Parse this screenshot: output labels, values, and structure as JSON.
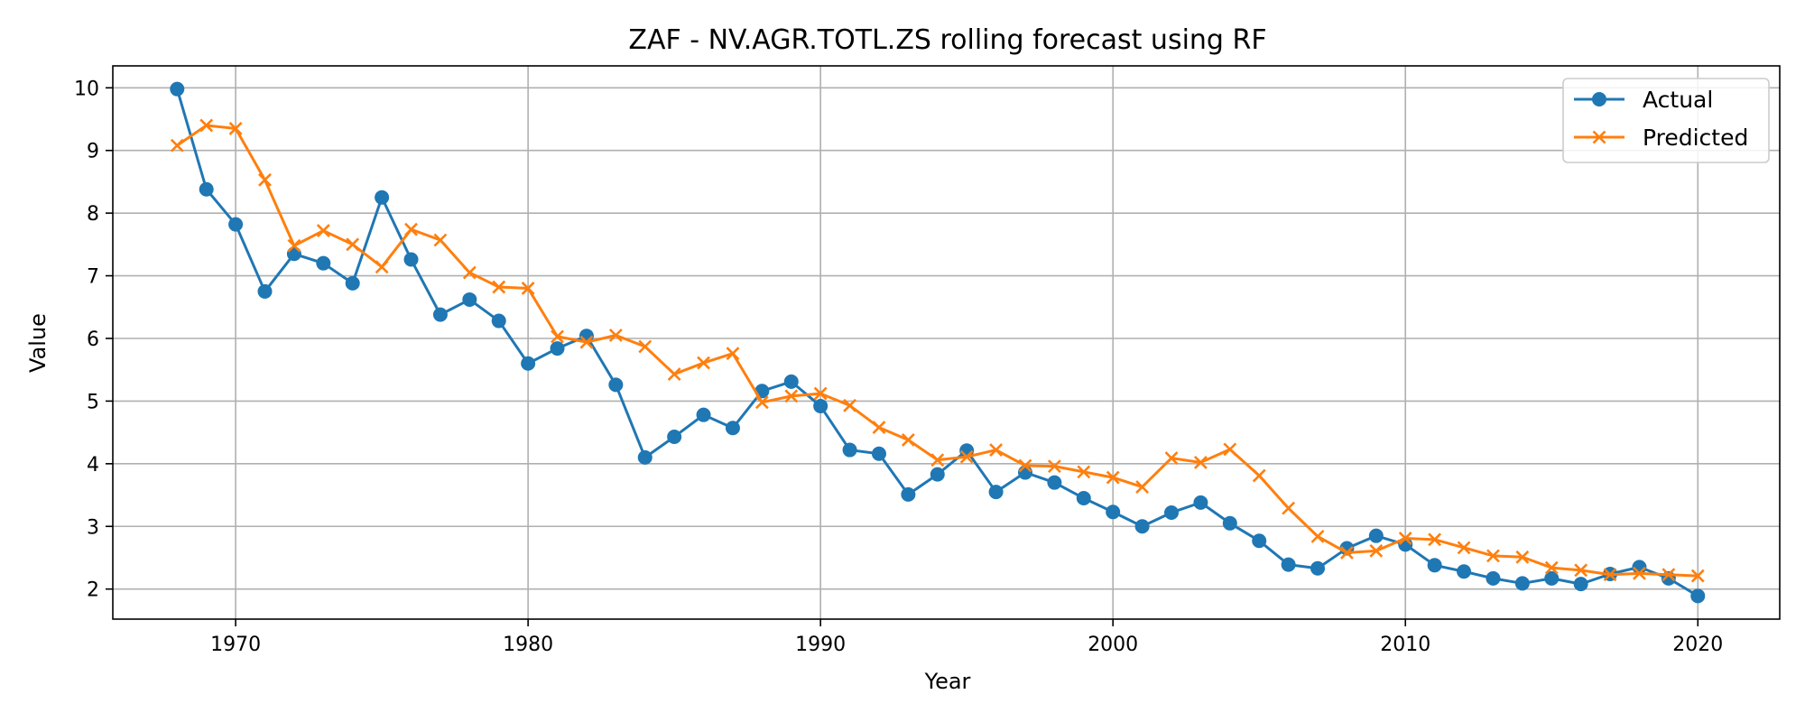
{
  "chart_data": {
    "type": "line",
    "title": "ZAF - NV.AGR.TOTL.ZS rolling forecast using RF",
    "xlabel": "Year",
    "ylabel": "Value",
    "xlim": [
      1965.8,
      2022.8
    ],
    "ylim": [
      1.52,
      10.35
    ],
    "x_ticks": [
      1970,
      1980,
      1990,
      2000,
      2010,
      2020
    ],
    "y_ticks": [
      2,
      3,
      4,
      5,
      6,
      7,
      8,
      9,
      10
    ],
    "grid": true,
    "legend_position": "top-right",
    "x": [
      1968,
      1969,
      1970,
      1971,
      1972,
      1973,
      1974,
      1975,
      1976,
      1977,
      1978,
      1979,
      1980,
      1981,
      1982,
      1983,
      1984,
      1985,
      1986,
      1987,
      1988,
      1989,
      1990,
      1991,
      1992,
      1993,
      1994,
      1995,
      1996,
      1997,
      1998,
      1999,
      2000,
      2001,
      2002,
      2003,
      2004,
      2005,
      2006,
      2007,
      2008,
      2009,
      2010,
      2011,
      2012,
      2013,
      2014,
      2015,
      2016,
      2017,
      2018,
      2019,
      2020
    ],
    "series": [
      {
        "name": "Actual",
        "color": "#1f77b4",
        "marker": "circle",
        "values": [
          9.98,
          8.38,
          7.82,
          6.75,
          7.35,
          7.2,
          6.88,
          8.25,
          7.26,
          6.38,
          6.62,
          6.28,
          5.6,
          5.84,
          6.04,
          5.26,
          4.1,
          4.43,
          4.78,
          4.57,
          5.16,
          5.31,
          4.92,
          4.22,
          4.16,
          3.51,
          3.83,
          4.21,
          3.55,
          3.86,
          3.7,
          3.45,
          3.23,
          3.0,
          3.22,
          3.38,
          3.05,
          2.77,
          2.39,
          2.33,
          2.65,
          2.85,
          2.71,
          2.38,
          2.28,
          2.17,
          2.09,
          2.17,
          2.08,
          2.24,
          2.35,
          2.17,
          1.89
        ]
      },
      {
        "name": "Predicted",
        "color": "#ff7f0e",
        "marker": "x",
        "values": [
          9.08,
          9.4,
          9.35,
          8.53,
          7.48,
          7.72,
          7.5,
          7.14,
          7.74,
          7.57,
          7.05,
          6.82,
          6.8,
          6.03,
          5.94,
          6.05,
          5.87,
          5.43,
          5.61,
          5.76,
          4.98,
          5.08,
          5.12,
          4.93,
          4.58,
          4.38,
          4.06,
          4.11,
          4.22,
          3.97,
          3.96,
          3.87,
          3.78,
          3.63,
          4.09,
          4.02,
          4.23,
          3.81,
          3.29,
          2.84,
          2.58,
          2.61,
          2.81,
          2.79,
          2.66,
          2.53,
          2.51,
          2.34,
          2.3,
          2.23,
          2.25,
          2.23,
          2.21
        ]
      }
    ]
  }
}
